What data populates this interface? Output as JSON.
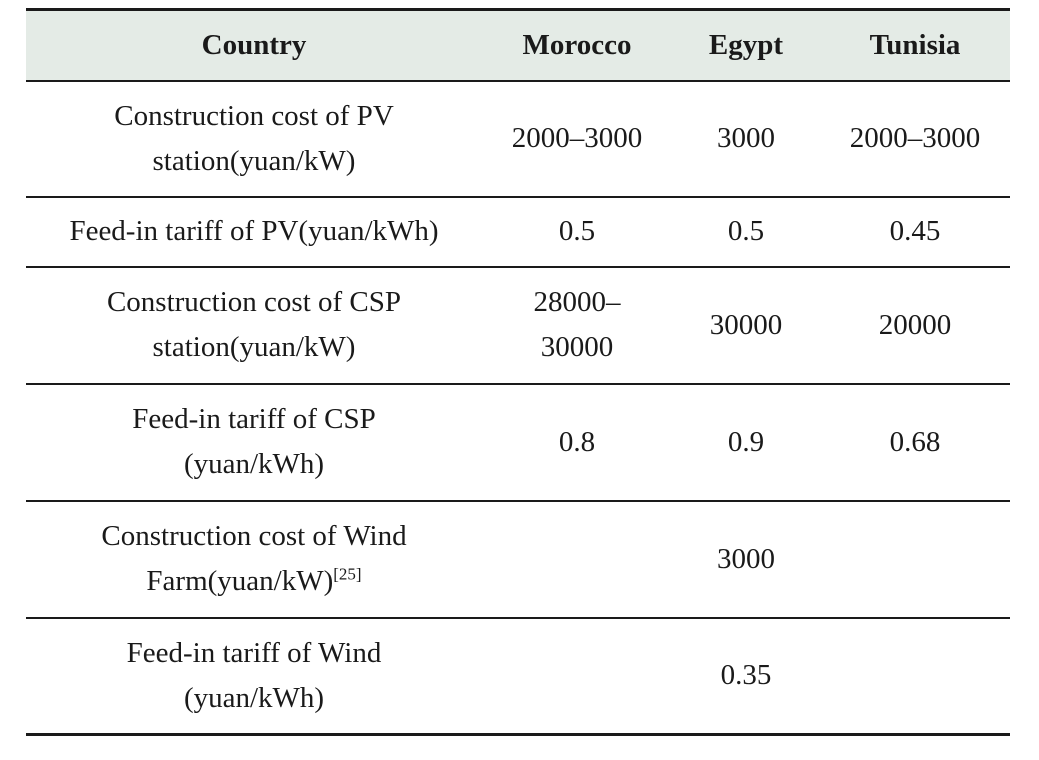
{
  "table": {
    "headers": [
      "Country",
      "Morocco",
      "Egypt",
      "Tunisia"
    ],
    "rows": [
      {
        "label_line1": "Construction cost of PV",
        "label_line2": "station(yuan/kW)",
        "morocco": "2000–3000",
        "egypt": "3000",
        "tunisia": "2000–3000"
      },
      {
        "label_line1": "Feed-in tariff of PV(yuan/kWh)",
        "morocco": "0.5",
        "egypt": "0.5",
        "tunisia": "0.45"
      },
      {
        "label_line1": "Construction cost of CSP",
        "label_line2": "station(yuan/kW)",
        "morocco_line1": "28000–",
        "morocco_line2": "30000",
        "egypt": "30000",
        "tunisia": "20000"
      },
      {
        "label_line1": "Feed-in tariff of CSP",
        "label_line2": "(yuan/kWh)",
        "morocco": "0.8",
        "egypt": "0.9",
        "tunisia": "0.68"
      },
      {
        "label_line1": "Construction cost of Wind",
        "label_line2": "Farm(yuan/kW)",
        "label_citation": "[25]",
        "shared_value": "3000"
      },
      {
        "label_line1": "Feed-in tariff of Wind",
        "label_line2": "(yuan/kWh)",
        "shared_value": "0.35"
      }
    ]
  }
}
